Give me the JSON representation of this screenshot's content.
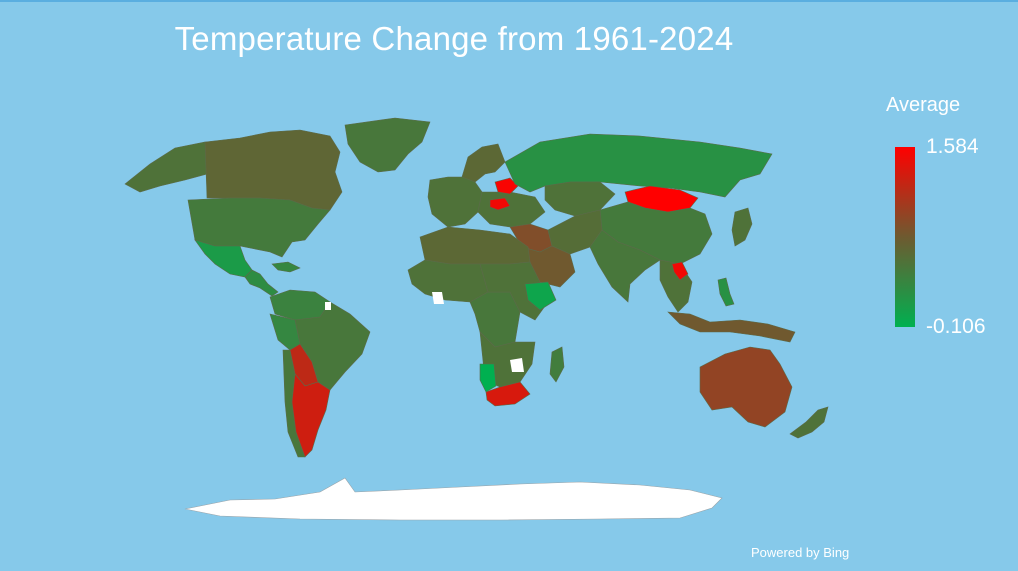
{
  "map": {
    "title": "Temperature Change from 1961-2024",
    "ocean_color": "#86C9EA",
    "antarctica_color": "#FFFFFF",
    "no_data_color": "#FFFFFF"
  },
  "legend": {
    "title": "Average",
    "max": "1.584",
    "min": "-0.106",
    "color_high": "#FF0000",
    "color_mid": "#6E5A30",
    "color_low": "#00B050"
  },
  "regions": [
    {
      "name": "Greenland",
      "value": 0.45
    },
    {
      "name": "Canada",
      "value": 0.62
    },
    {
      "name": "Alaska",
      "value": 0.5
    },
    {
      "name": "United States",
      "value": 0.42
    },
    {
      "name": "Mexico",
      "value": 0.1
    },
    {
      "name": "Central America",
      "value": 0.25
    },
    {
      "name": "Caribbean",
      "value": 0.3
    },
    {
      "name": "Brazil",
      "value": 0.45
    },
    {
      "name": "Northern South America",
      "value": 0.35
    },
    {
      "name": "Peru",
      "value": 0.3
    },
    {
      "name": "Chile",
      "value": 0.45
    },
    {
      "name": "Bolivia and Paraguay",
      "value": 1.2
    },
    {
      "name": "Argentina",
      "value": 1.3
    },
    {
      "name": "Western Europe",
      "value": 0.5
    },
    {
      "name": "Scandinavia",
      "value": 0.6
    },
    {
      "name": "Eastern Europe",
      "value": 0.5
    },
    {
      "name": "Belarus",
      "value": 1.55
    },
    {
      "name": "Romania",
      "value": 1.5
    },
    {
      "name": "Russia",
      "value": 0.2
    },
    {
      "name": "Kazakhstan",
      "value": 0.5
    },
    {
      "name": "Middle East",
      "value": 0.85
    },
    {
      "name": "Arabian Peninsula",
      "value": 0.75
    },
    {
      "name": "Iran",
      "value": 0.55
    },
    {
      "name": "South Asia",
      "value": 0.45
    },
    {
      "name": "China",
      "value": 0.42
    },
    {
      "name": "Mongolia",
      "value": 1.584
    },
    {
      "name": "Japan",
      "value": 0.5
    },
    {
      "name": "Southeast Asia",
      "value": 0.5
    },
    {
      "name": "Laos",
      "value": 1.5
    },
    {
      "name": "Indonesia",
      "value": 0.75
    },
    {
      "name": "Philippines",
      "value": 0.2
    },
    {
      "name": "North Africa",
      "value": 0.6
    },
    {
      "name": "West Africa",
      "value": 0.5
    },
    {
      "name": "Central Africa",
      "value": 0.45
    },
    {
      "name": "East Africa",
      "value": 0.5
    },
    {
      "name": "Ethiopia",
      "value": 0.0
    },
    {
      "name": "Southern Africa",
      "value": 0.5
    },
    {
      "name": "Namibia",
      "value": -0.106
    },
    {
      "name": "South Africa",
      "value": 1.35
    },
    {
      "name": "Madagascar",
      "value": 0.4
    },
    {
      "name": "Australia",
      "value": 0.95
    },
    {
      "name": "New Zealand",
      "value": 0.5
    }
  ],
  "attribution": "Powered by Bing"
}
